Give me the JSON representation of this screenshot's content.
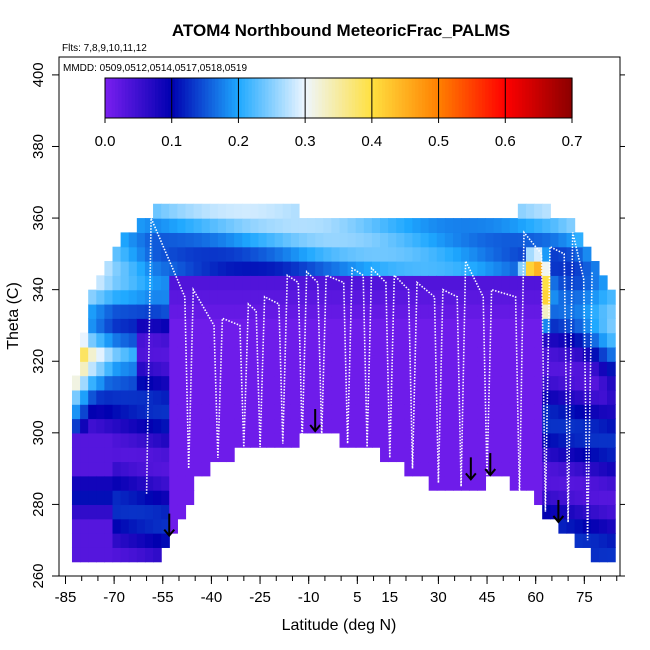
{
  "chart_data": {
    "type": "heatmap",
    "title": "ATOM4 Northbound MeteoricFrac_PALMS",
    "flights_note": "Flts: 7,8,9,10,11,12",
    "dates_note": "MMDD: 0509,0512,0514,0517,0518,0519",
    "xlabel": "Latitude (deg N)",
    "ylabel": "Theta (C)",
    "xlim": [
      -87,
      86
    ],
    "ylim": [
      260,
      405
    ],
    "x_ticks": [
      -85,
      -70,
      -55,
      -40,
      -25,
      -10,
      5,
      15,
      30,
      45,
      60,
      75
    ],
    "y_ticks": [
      260,
      280,
      300,
      320,
      340,
      360,
      380,
      400
    ],
    "colorbar": {
      "min": 0.0,
      "max": 0.7,
      "ticks": [
        0.0,
        0.1,
        0.2,
        0.3,
        0.4,
        0.5,
        0.6,
        0.7
      ],
      "tick_labels": [
        "0.0",
        "0.1",
        "0.2",
        "0.3",
        "0.4",
        "0.5",
        "0.6",
        "0.7"
      ],
      "colors": [
        "#7a1ff0",
        "#0000b0",
        "#1ea8ff",
        "#eef6ff",
        "#ffe040",
        "#ff8000",
        "#ff0000",
        "#8b0000"
      ]
    },
    "arrows_latitude": [
      -53,
      -8,
      40,
      46,
      67
    ],
    "surface_bottom": [
      [
        -83,
        263
      ],
      [
        -66,
        263
      ],
      [
        -56,
        265
      ],
      [
        -49,
        275
      ],
      [
        -44,
        288
      ],
      [
        -32,
        295
      ],
      [
        -24,
        296
      ],
      [
        -12,
        298
      ],
      [
        -4,
        299
      ],
      [
        8,
        296
      ],
      [
        20,
        290
      ],
      [
        30,
        284
      ],
      [
        40,
        285
      ],
      [
        50,
        287
      ],
      [
        58,
        283
      ],
      [
        68,
        272
      ],
      [
        78,
        265
      ],
      [
        83,
        264
      ]
    ],
    "surface_top": [
      [
        -83,
        310
      ],
      [
        -77,
        338
      ],
      [
        -70,
        352
      ],
      [
        -58,
        362
      ],
      [
        -50,
        362
      ],
      [
        -35,
        363
      ],
      [
        -20,
        363
      ],
      [
        -5,
        361
      ],
      [
        10,
        361
      ],
      [
        25,
        361
      ],
      [
        40,
        361
      ],
      [
        55,
        362
      ],
      [
        65,
        362
      ],
      [
        72,
        360
      ],
      [
        78,
        350
      ],
      [
        83,
        340
      ]
    ],
    "profiles": [
      {
        "lat": -60,
        "bottom": 283,
        "top": 360
      },
      {
        "lat": -47,
        "bottom": 290,
        "top": 340
      },
      {
        "lat": -38,
        "bottom": 293,
        "top": 332
      },
      {
        "lat": -30,
        "bottom": 296,
        "top": 336
      },
      {
        "lat": -25,
        "bottom": 296,
        "top": 338
      },
      {
        "lat": -18,
        "bottom": 297,
        "top": 344
      },
      {
        "lat": -12,
        "bottom": 298,
        "top": 345
      },
      {
        "lat": -6,
        "bottom": 299,
        "top": 344
      },
      {
        "lat": 2,
        "bottom": 297,
        "top": 346
      },
      {
        "lat": 8,
        "bottom": 296,
        "top": 346
      },
      {
        "lat": 15,
        "bottom": 293,
        "top": 344
      },
      {
        "lat": 22,
        "bottom": 290,
        "top": 342
      },
      {
        "lat": 30,
        "bottom": 286,
        "top": 340
      },
      {
        "lat": 37,
        "bottom": 285,
        "top": 348
      },
      {
        "lat": 45,
        "bottom": 288,
        "top": 340
      },
      {
        "lat": 55,
        "bottom": 282,
        "top": 356
      },
      {
        "lat": 63,
        "bottom": 278,
        "top": 352
      },
      {
        "lat": 70,
        "bottom": 275,
        "top": 356
      },
      {
        "lat": 76,
        "bottom": 270,
        "top": 345
      }
    ],
    "grid": false,
    "legend_position": "top (horizontal colorbar inside plot)"
  }
}
